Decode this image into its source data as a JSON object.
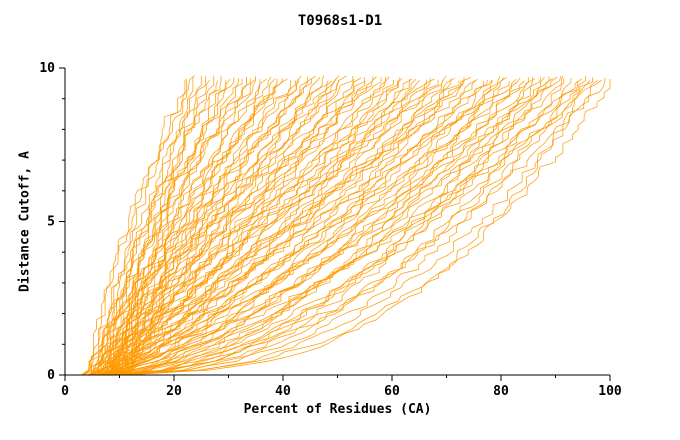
{
  "page": {
    "background": "#ffffff"
  },
  "chart_data": {
    "type": "line",
    "title": "T0968s1-D1",
    "xlabel": "Percent of Residues (CA)",
    "ylabel": "Distance Cutoff, A",
    "xlim": [
      0,
      100
    ],
    "ylim": [
      0,
      10
    ],
    "xticks": [
      0,
      20,
      40,
      60,
      80,
      100
    ],
    "yticks": [
      0,
      5,
      10
    ],
    "x_minor_step": 10,
    "y_minor_step": 1,
    "grid": false,
    "legend": "none",
    "line_color": "#ff9900",
    "axis_color": "#000000",
    "note": "GDT-style plot: each orange curve is one predicted model; x = percent of CA residues fitting within distance cutoff y. Curves estimated from pixels as [x_at_bottom, x_at_top, shape_exponent, seed].",
    "curve_top_y": 9.7,
    "curves": [
      [
        4,
        22,
        1.3,
        0
      ],
      [
        7,
        22.8,
        1.57,
        1
      ],
      [
        10,
        23.5,
        1.4,
        2
      ],
      [
        5,
        24.3,
        1.67,
        3
      ],
      [
        8,
        25,
        1.5,
        4
      ],
      [
        11,
        25.8,
        1.33,
        5
      ],
      [
        6,
        26.5,
        1.6,
        6
      ],
      [
        9,
        27.3,
        1.43,
        7
      ],
      [
        4,
        28,
        1.26,
        8
      ],
      [
        7,
        28.8,
        1.53,
        9
      ],
      [
        10,
        29.5,
        1.36,
        10
      ],
      [
        5,
        30.3,
        1.19,
        11
      ],
      [
        8,
        31,
        1.46,
        12
      ],
      [
        11,
        31.8,
        1.29,
        13
      ],
      [
        6,
        32.5,
        1.56,
        14
      ],
      [
        9,
        33.3,
        1.39,
        15
      ],
      [
        4,
        34,
        1.22,
        16
      ],
      [
        7,
        34.8,
        1.49,
        17
      ],
      [
        10,
        35.5,
        1.32,
        18
      ],
      [
        5,
        36.3,
        1.15,
        19
      ],
      [
        8,
        37,
        1.42,
        20
      ],
      [
        11,
        37.8,
        1.26,
        21
      ],
      [
        6,
        38.5,
        1.09,
        22
      ],
      [
        9,
        39.3,
        1.36,
        23
      ],
      [
        4,
        40,
        1.19,
        24
      ],
      [
        7,
        40.8,
        1.46,
        25
      ],
      [
        10,
        41.5,
        1.29,
        26
      ],
      [
        5,
        42.3,
        1.12,
        27
      ],
      [
        8,
        43,
        1.39,
        28
      ],
      [
        11,
        43.8,
        1.22,
        29
      ],
      [
        6,
        44.5,
        1.05,
        30
      ],
      [
        9,
        45.3,
        1.32,
        31
      ],
      [
        4,
        46,
        1.15,
        32
      ],
      [
        7,
        46.8,
        0.98,
        33
      ],
      [
        10,
        47.5,
        1.25,
        34
      ],
      [
        5,
        48.3,
        1.08,
        35
      ],
      [
        8,
        49,
        1.35,
        36
      ],
      [
        11,
        49.8,
        1.18,
        37
      ],
      [
        6,
        50.5,
        1.01,
        38
      ],
      [
        9,
        51.3,
        1.28,
        39
      ],
      [
        4,
        52,
        1.11,
        40
      ],
      [
        7,
        52.8,
        0.94,
        41
      ],
      [
        10,
        53.5,
        1.21,
        42
      ],
      [
        5,
        54.3,
        1.04,
        43
      ],
      [
        8,
        55,
        0.87,
        44
      ],
      [
        11,
        55.8,
        1.14,
        45
      ],
      [
        6,
        56.5,
        0.97,
        46
      ],
      [
        9,
        57.3,
        1.24,
        47
      ],
      [
        4,
        58,
        1.07,
        48
      ],
      [
        7,
        58.8,
        0.9,
        49
      ],
      [
        10,
        59.5,
        1.17,
        50
      ],
      [
        5,
        60.3,
        1.0,
        51
      ],
      [
        8,
        61,
        0.83,
        52
      ],
      [
        11,
        61.8,
        1.1,
        53
      ],
      [
        6,
        62.5,
        0.93,
        54
      ],
      [
        9,
        63.3,
        0.76,
        55
      ],
      [
        4,
        64,
        1.03,
        56
      ],
      [
        7,
        64.8,
        0.86,
        57
      ],
      [
        10,
        65.5,
        1.13,
        58
      ],
      [
        5,
        66.3,
        0.96,
        59
      ],
      [
        8,
        67,
        0.79,
        60
      ],
      [
        11,
        67.8,
        1.07,
        61
      ],
      [
        6,
        68.5,
        0.9,
        62
      ],
      [
        9,
        69.3,
        0.73,
        63
      ],
      [
        4,
        70,
        1.0,
        64
      ],
      [
        7,
        70.8,
        0.83,
        65
      ],
      [
        10,
        71.5,
        0.66,
        66
      ],
      [
        5,
        72.3,
        0.93,
        67
      ],
      [
        8,
        73,
        0.76,
        68
      ],
      [
        11,
        73.8,
        1.03,
        69
      ],
      [
        6,
        74.5,
        0.86,
        70
      ],
      [
        9,
        75.3,
        0.69,
        71
      ],
      [
        4,
        76,
        0.96,
        72
      ],
      [
        7,
        76.8,
        0.79,
        73
      ],
      [
        10,
        77.5,
        0.62,
        74
      ],
      [
        5,
        78.3,
        0.89,
        75
      ],
      [
        8,
        79,
        0.72,
        76
      ],
      [
        11,
        79.8,
        0.55,
        77
      ],
      [
        6,
        80.5,
        0.82,
        78
      ],
      [
        9,
        81.3,
        0.65,
        79
      ],
      [
        4,
        82,
        0.92,
        80
      ],
      [
        7,
        82.8,
        0.75,
        81
      ],
      [
        10,
        83.5,
        0.58,
        82
      ],
      [
        5,
        84.3,
        0.85,
        83
      ],
      [
        8,
        85,
        0.68,
        84
      ],
      [
        11,
        85.8,
        0.51,
        85
      ],
      [
        6,
        86.5,
        0.78,
        86
      ],
      [
        9,
        87.3,
        0.61,
        87
      ],
      [
        4,
        88,
        0.44,
        88
      ],
      [
        7,
        88.8,
        0.71,
        89
      ],
      [
        10,
        89.5,
        0.54,
        90
      ],
      [
        5,
        90.3,
        0.81,
        91
      ],
      [
        8,
        91,
        0.64,
        92
      ],
      [
        11,
        91.8,
        0.47,
        93
      ],
      [
        6,
        92.5,
        0.74,
        94
      ],
      [
        9,
        93.3,
        0.57,
        95
      ],
      [
        4,
        94,
        0.4,
        96
      ],
      [
        7,
        94.8,
        0.67,
        97
      ],
      [
        10,
        95.5,
        0.5,
        98
      ],
      [
        5,
        96.3,
        0.34,
        99
      ],
      [
        8,
        97,
        0.61,
        100
      ],
      [
        11,
        97.8,
        0.44,
        101
      ],
      [
        6,
        98.5,
        0.71,
        102
      ],
      [
        9,
        99.3,
        0.54,
        103
      ],
      [
        4,
        100,
        0.37,
        104
      ]
    ]
  }
}
